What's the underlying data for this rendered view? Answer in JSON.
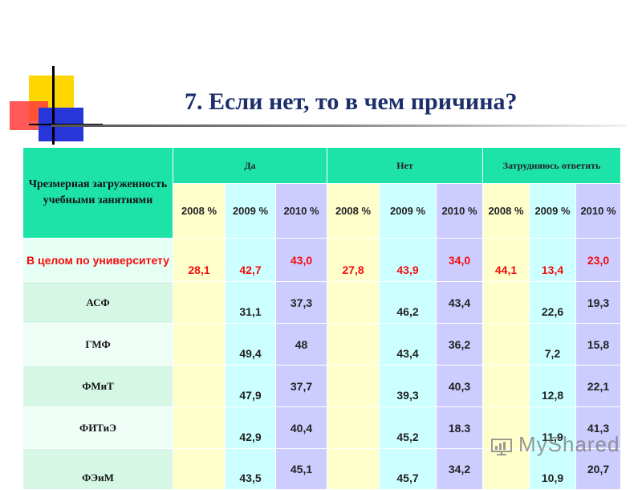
{
  "title": "7. Если нет, то в чем причина?",
  "table": {
    "corner_label": "Чрезмерная загруженность учебными занятиями",
    "groups": [
      "Да",
      "Нет",
      "Затрудняюсь ответить"
    ],
    "years": [
      "2008 %",
      "2009 %",
      "2010 %",
      "2008 %",
      "2009 %",
      "2010 %",
      "2008 %",
      "2009 %",
      "2010 %"
    ],
    "rows": [
      {
        "label": "В целом по университету",
        "values": [
          "28,1",
          "42,7",
          "43,0",
          "27,8",
          "43,9",
          "34,0",
          "44,1",
          "13,4",
          "23,0"
        ]
      },
      {
        "label": "АСФ",
        "values": [
          "",
          "31,1",
          "37,3",
          "",
          "46,2",
          "43,4",
          "",
          "22,6",
          "19,3"
        ]
      },
      {
        "label": "ГМФ",
        "values": [
          "",
          "49,4",
          "48",
          "",
          "43,4",
          "36,2",
          "",
          "7,2",
          "15,8"
        ]
      },
      {
        "label": "ФМиТ",
        "values": [
          "",
          "47,9",
          "37,7",
          "",
          "39,3",
          "40,3",
          "",
          "12,8",
          "22,1"
        ]
      },
      {
        "label": "ФИТиЭ",
        "values": [
          "",
          "42,9",
          "40,4",
          "",
          "45,2",
          "18.3",
          "",
          "11,9",
          "41,3"
        ]
      },
      {
        "label": "ФЭиМ",
        "values": [
          "",
          "43,5",
          "45,1",
          "",
          "45,7",
          "34,2",
          "",
          "10,9",
          "20,7"
        ]
      }
    ]
  },
  "watermark": "MyShared",
  "colors": {
    "header_green": "#1ee3a8",
    "col_2008": "#ffffcc",
    "col_2009": "#ccffff",
    "col_2010": "#ccccff",
    "highlight_red": "#f40d0d",
    "title_blue": "#1d2f6b"
  }
}
